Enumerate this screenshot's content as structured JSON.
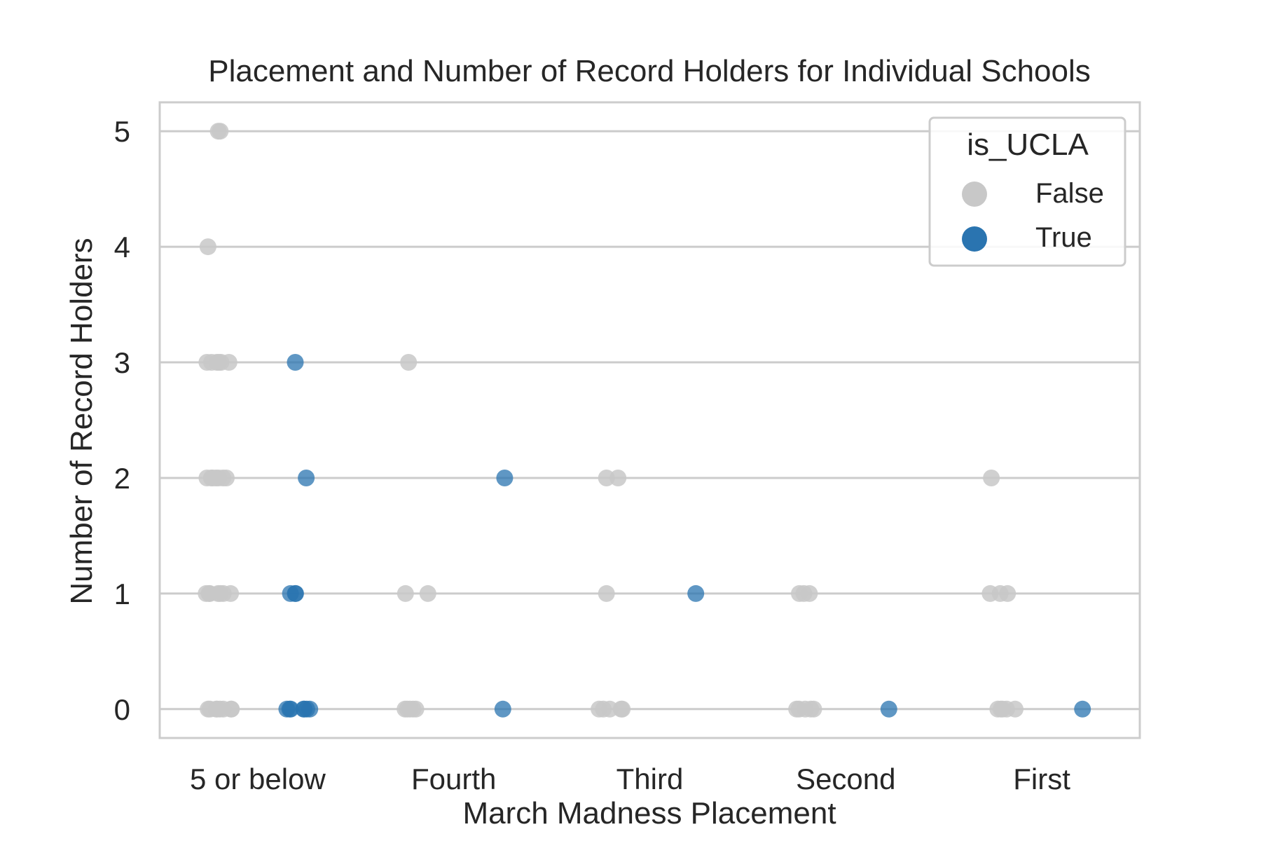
{
  "chart_data": {
    "type": "scatter",
    "title": "Placement and Number of Record Holders for Individual Schools",
    "xlabel": "March Madness Placement",
    "ylabel": "Number of Record Holders",
    "categories": [
      "5 or below",
      "Fourth",
      "Third",
      "Second",
      "First"
    ],
    "ylim": [
      -0.25,
      5.25
    ],
    "yticks": [
      0,
      1,
      2,
      3,
      4,
      5
    ],
    "grid": "horizontal",
    "legend": {
      "title": "is_UCLA",
      "position": "top-right",
      "entries": [
        {
          "label": "False",
          "color": "#c8c8c8"
        },
        {
          "label": "True",
          "color": "#2a74b0"
        }
      ]
    },
    "series": [
      {
        "name": "False",
        "color": "#c8c8c8",
        "points": [
          {
            "x": "5 or below",
            "y": 5
          },
          {
            "x": "5 or below",
            "y": 5
          },
          {
            "x": "5 or below",
            "y": 4
          },
          {
            "x": "5 or below",
            "y": 3
          },
          {
            "x": "5 or below",
            "y": 3
          },
          {
            "x": "5 or below",
            "y": 3
          },
          {
            "x": "5 or below",
            "y": 3
          },
          {
            "x": "5 or below",
            "y": 3
          },
          {
            "x": "5 or below",
            "y": 3
          },
          {
            "x": "5 or below",
            "y": 2
          },
          {
            "x": "5 or below",
            "y": 2
          },
          {
            "x": "5 or below",
            "y": 2
          },
          {
            "x": "5 or below",
            "y": 2
          },
          {
            "x": "5 or below",
            "y": 2
          },
          {
            "x": "5 or below",
            "y": 2
          },
          {
            "x": "5 or below",
            "y": 2
          },
          {
            "x": "5 or below",
            "y": 1
          },
          {
            "x": "5 or below",
            "y": 1
          },
          {
            "x": "5 or below",
            "y": 1
          },
          {
            "x": "5 or below",
            "y": 1
          },
          {
            "x": "5 or below",
            "y": 1
          },
          {
            "x": "5 or below",
            "y": 1
          },
          {
            "x": "5 or below",
            "y": 1
          },
          {
            "x": "5 or below",
            "y": 0
          },
          {
            "x": "5 or below",
            "y": 0
          },
          {
            "x": "5 or below",
            "y": 0
          },
          {
            "x": "5 or below",
            "y": 0
          },
          {
            "x": "5 or below",
            "y": 0
          },
          {
            "x": "5 or below",
            "y": 0
          },
          {
            "x": "5 or below",
            "y": 0
          },
          {
            "x": "5 or below",
            "y": 0
          },
          {
            "x": "Fourth",
            "y": 3
          },
          {
            "x": "Fourth",
            "y": 1
          },
          {
            "x": "Fourth",
            "y": 1
          },
          {
            "x": "Fourth",
            "y": 0
          },
          {
            "x": "Fourth",
            "y": 0
          },
          {
            "x": "Fourth",
            "y": 0
          },
          {
            "x": "Fourth",
            "y": 0
          },
          {
            "x": "Fourth",
            "y": 0
          },
          {
            "x": "Third",
            "y": 2
          },
          {
            "x": "Third",
            "y": 2
          },
          {
            "x": "Third",
            "y": 1
          },
          {
            "x": "Third",
            "y": 0
          },
          {
            "x": "Third",
            "y": 0
          },
          {
            "x": "Third",
            "y": 0
          },
          {
            "x": "Third",
            "y": 0
          },
          {
            "x": "Third",
            "y": 0
          },
          {
            "x": "Second",
            "y": 1
          },
          {
            "x": "Second",
            "y": 1
          },
          {
            "x": "Second",
            "y": 1
          },
          {
            "x": "Second",
            "y": 0
          },
          {
            "x": "Second",
            "y": 0
          },
          {
            "x": "Second",
            "y": 0
          },
          {
            "x": "Second",
            "y": 0
          },
          {
            "x": "Second",
            "y": 0
          },
          {
            "x": "First",
            "y": 2
          },
          {
            "x": "First",
            "y": 1
          },
          {
            "x": "First",
            "y": 1
          },
          {
            "x": "First",
            "y": 1
          },
          {
            "x": "First",
            "y": 0
          },
          {
            "x": "First",
            "y": 0
          },
          {
            "x": "First",
            "y": 0
          },
          {
            "x": "First",
            "y": 0
          },
          {
            "x": "First",
            "y": 0
          }
        ]
      },
      {
        "name": "True",
        "color": "#2a74b0",
        "points": [
          {
            "x": "5 or below",
            "y": 3
          },
          {
            "x": "5 or below",
            "y": 2
          },
          {
            "x": "5 or below",
            "y": 1
          },
          {
            "x": "5 or below",
            "y": 1
          },
          {
            "x": "5 or below",
            "y": 1
          },
          {
            "x": "5 or below",
            "y": 0
          },
          {
            "x": "5 or below",
            "y": 0
          },
          {
            "x": "5 or below",
            "y": 0
          },
          {
            "x": "5 or below",
            "y": 0
          },
          {
            "x": "5 or below",
            "y": 0
          },
          {
            "x": "5 or below",
            "y": 0
          },
          {
            "x": "5 or below",
            "y": 0
          },
          {
            "x": "Fourth",
            "y": 2
          },
          {
            "x": "Fourth",
            "y": 0
          },
          {
            "x": "Third",
            "y": 1
          },
          {
            "x": "Second",
            "y": 0
          },
          {
            "x": "First",
            "y": 0
          }
        ]
      }
    ]
  }
}
